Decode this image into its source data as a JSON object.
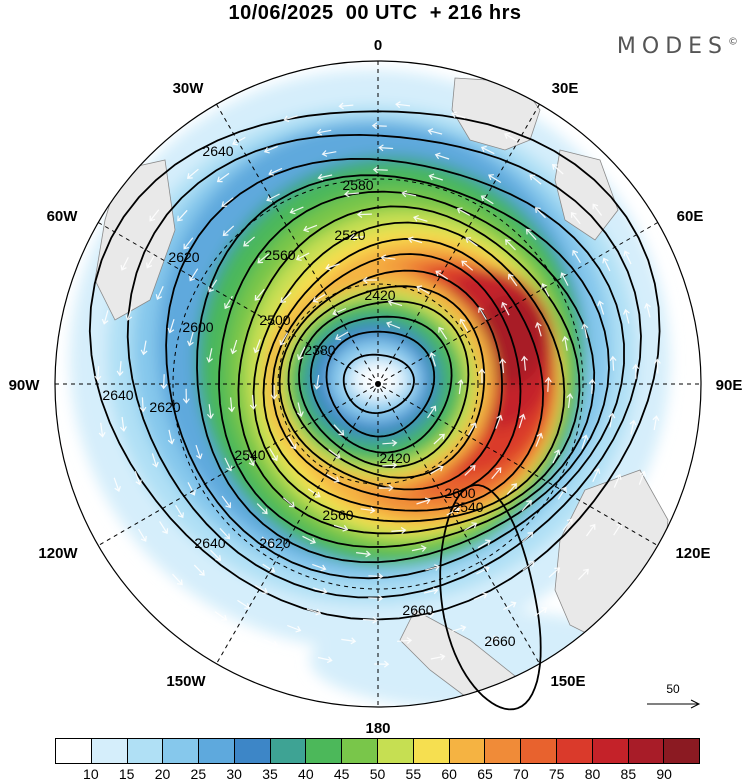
{
  "title": "10/06/2025  00 UTC  + 216 hrs",
  "brand": "MODES",
  "brand_mark": "©",
  "map": {
    "projection": "south polar stereographic",
    "longitude_labels": [
      "0",
      "30E",
      "60E",
      "90E",
      "120E",
      "150E",
      "180",
      "150W",
      "120W",
      "90W",
      "60W",
      "30W"
    ],
    "contour_labels": [
      "2640",
      "2620",
      "2600",
      "2580",
      "2560",
      "2540",
      "2520",
      "2500",
      "2420",
      "2380",
      "2660"
    ],
    "contour_lines": [
      2660,
      2640,
      2620,
      2600,
      2580,
      2560,
      2540,
      2520,
      2500,
      2480,
      2460,
      2440,
      2420,
      2400,
      2380,
      2360
    ]
  },
  "colorbar": {
    "ticks": [
      "10",
      "15",
      "20",
      "25",
      "30",
      "35",
      "40",
      "45",
      "50",
      "55",
      "60",
      "65",
      "70",
      "75",
      "80",
      "85",
      "90"
    ],
    "colors": [
      "#ffffff",
      "#d5eefb",
      "#b0e0f5",
      "#86c8ec",
      "#5ea9dd",
      "#3d86c7",
      "#3ea394",
      "#4cb85a",
      "#79c64a",
      "#c6df52",
      "#f6df50",
      "#f5b342",
      "#f08b38",
      "#e8622e",
      "#da3a2b",
      "#c42229",
      "#a81c28",
      "#8b1a22"
    ]
  },
  "reference_vector": {
    "label": "50"
  }
}
